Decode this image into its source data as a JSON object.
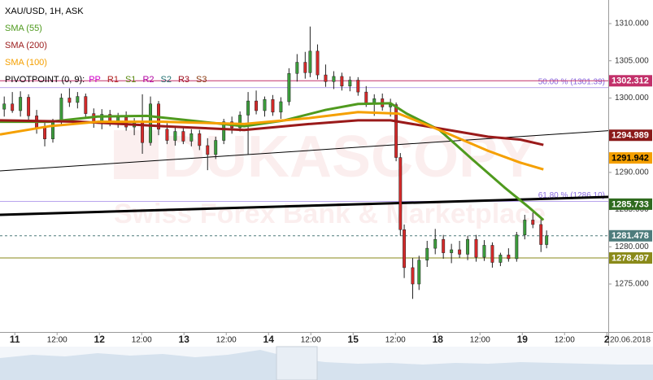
{
  "chart_data": {
    "type": "candlestick",
    "title": "XAU/USD, 1H, ASK",
    "pivot_label": "PIVOTPOINT (0, 9):",
    "pivot_levels": [
      {
        "name": "PP",
        "color": "#d000c8"
      },
      {
        "name": "R1",
        "color": "#b02020"
      },
      {
        "name": "S1",
        "color": "#5a8a10"
      },
      {
        "name": "R2",
        "color": "#b000a0"
      },
      {
        "name": "S2",
        "color": "#207070"
      },
      {
        "name": "R3",
        "color": "#a01020"
      },
      {
        "name": "S3",
        "color": "#8a3a10"
      }
    ],
    "watermark": [
      "DUKASCOPY",
      "Swiss Forex Bank & Marketplace"
    ],
    "date_label": "20.06.2018",
    "xlim": [
      -4.2,
      168.4
    ],
    "ylim": [
      1268.55,
      1313.17
    ],
    "xticks": [
      {
        "value": 0,
        "label": "11"
      },
      {
        "value": 12,
        "label": "12:00"
      },
      {
        "value": 24,
        "label": "12"
      },
      {
        "value": 36,
        "label": "12:00"
      },
      {
        "value": 48,
        "label": "13"
      },
      {
        "value": 60,
        "label": "12:00"
      },
      {
        "value": 72,
        "label": "14"
      },
      {
        "value": 84,
        "label": "12:00"
      },
      {
        "value": 96,
        "label": "15"
      },
      {
        "value": 108,
        "label": "12:00"
      },
      {
        "value": 120,
        "label": "18"
      },
      {
        "value": 132,
        "label": "12:00"
      },
      {
        "value": 144,
        "label": "19"
      },
      {
        "value": 156,
        "label": "12:00"
      },
      {
        "value": 168,
        "label": "2"
      }
    ],
    "yticks": [
      {
        "value": 1275,
        "label": "1275.000"
      },
      {
        "value": 1280,
        "label": "1280.000"
      },
      {
        "value": 1285,
        "label": "1285.000"
      },
      {
        "value": 1290,
        "label": "1290.000"
      },
      {
        "value": 1295,
        "label": "1295.000"
      },
      {
        "value": 1300,
        "label": "1300.000"
      },
      {
        "value": 1305,
        "label": "1305.000"
      },
      {
        "value": 1310,
        "label": "1310.000"
      }
    ],
    "candles": {
      "up_color": "#3c9c3c",
      "down_color": "#d42a2a",
      "x": [
        -3.0,
        -0.7,
        1.6,
        3.9,
        6.2,
        8.5,
        10.8,
        13.2,
        15.5,
        17.8,
        20.1,
        22.4,
        24.7,
        27.0,
        29.3,
        31.6,
        33.9,
        36.2,
        38.5,
        40.8,
        43.2,
        45.5,
        47.8,
        50.1,
        52.4,
        54.7,
        57.0,
        59.3,
        61.6,
        63.9,
        66.2,
        68.5,
        70.9,
        73.2,
        75.5,
        77.8,
        80.1,
        82.4,
        83.8,
        85.9,
        88.2,
        90.5,
        92.8,
        95.1,
        97.4,
        99.7,
        102.0,
        104.3,
        106.6,
        108.2,
        109.4,
        110.5,
        112.9,
        114.7,
        117.0,
        119.3,
        121.6,
        123.9,
        126.2,
        128.5,
        130.9,
        133.2,
        135.5,
        137.8,
        140.1,
        142.4,
        144.7,
        147.0,
        149.3,
        150.9
      ],
      "open": [
        1298.5,
        1299.2,
        1298.3,
        1300.1,
        1297.6,
        1296.0,
        1294.5,
        1296.8,
        1300.0,
        1299.4,
        1300.2,
        1297.9,
        1296.6,
        1297.8,
        1296.5,
        1297.4,
        1296.1,
        1296.9,
        1294.0,
        1299.2,
        1295.8,
        1294.3,
        1295.5,
        1294.2,
        1295.2,
        1293.6,
        1292.4,
        1294.3,
        1296.8,
        1296.0,
        1297.7,
        1299.6,
        1298.3,
        1299.8,
        1298.1,
        1299.5,
        1303.3,
        1304.8,
        1303.4,
        1306.3,
        1303.1,
        1302.2,
        1302.9,
        1301.6,
        1302.4,
        1300.8,
        1299.3,
        1299.9,
        1298.8,
        1299.1,
        1292.0,
        1282.3,
        1277.2,
        1275.0,
        1278.2,
        1279.8,
        1281.0,
        1279.2,
        1279.6,
        1279.0,
        1281.0,
        1278.6,
        1280.2,
        1277.9,
        1278.9,
        1278.4,
        1281.6,
        1283.6,
        1283.0,
        1280.3
      ],
      "high": [
        1300.2,
        1300.8,
        1300.9,
        1300.5,
        1298.4,
        1296.8,
        1297.2,
        1300.6,
        1301.3,
        1300.8,
        1300.6,
        1298.6,
        1298.5,
        1298.4,
        1298.0,
        1298.2,
        1297.3,
        1300.5,
        1300.2,
        1299.6,
        1296.6,
        1296.0,
        1296.1,
        1295.8,
        1295.7,
        1294.6,
        1294.8,
        1297.2,
        1297.5,
        1298.2,
        1300.8,
        1301.0,
        1300.2,
        1300.4,
        1300.1,
        1304.0,
        1305.9,
        1306.2,
        1309.6,
        1307.2,
        1304.5,
        1303.6,
        1303.4,
        1302.9,
        1302.8,
        1301.6,
        1300.5,
        1300.6,
        1299.9,
        1299.4,
        1292.6,
        1283.0,
        1278.5,
        1278.8,
        1280.8,
        1282.4,
        1281.6,
        1280.4,
        1280.8,
        1281.5,
        1281.6,
        1280.9,
        1280.6,
        1279.2,
        1279.8,
        1282.0,
        1284.3,
        1284.6,
        1283.8,
        1282.2
      ],
      "low": [
        1297.5,
        1298.0,
        1297.5,
        1297.0,
        1295.2,
        1293.5,
        1294.0,
        1296.3,
        1298.8,
        1298.6,
        1297.4,
        1296.0,
        1295.8,
        1296.2,
        1296.0,
        1295.6,
        1295.0,
        1292.5,
        1293.6,
        1295.0,
        1293.8,
        1293.6,
        1293.8,
        1293.5,
        1293.0,
        1290.3,
        1291.8,
        1293.8,
        1295.2,
        1295.5,
        1292.4,
        1297.8,
        1297.5,
        1297.6,
        1297.2,
        1299.0,
        1302.2,
        1302.6,
        1302.8,
        1302.5,
        1301.5,
        1301.2,
        1301.0,
        1300.9,
        1300.3,
        1298.8,
        1297.6,
        1298.3,
        1297.5,
        1291.5,
        1281.5,
        1275.8,
        1273.0,
        1274.2,
        1277.3,
        1279.0,
        1278.4,
        1277.8,
        1278.5,
        1278.2,
        1278.0,
        1278.1,
        1277.2,
        1277.4,
        1278.0,
        1278.0,
        1281.0,
        1282.5,
        1279.3,
        1279.8
      ],
      "close": [
        1299.2,
        1298.3,
        1300.1,
        1297.6,
        1296.0,
        1294.5,
        1296.8,
        1300.0,
        1299.4,
        1300.2,
        1297.9,
        1296.6,
        1297.8,
        1296.5,
        1297.4,
        1296.1,
        1296.9,
        1294.0,
        1299.2,
        1295.8,
        1294.3,
        1295.5,
        1294.2,
        1295.2,
        1293.6,
        1292.4,
        1294.3,
        1296.8,
        1296.0,
        1297.7,
        1299.6,
        1298.3,
        1299.8,
        1298.1,
        1299.5,
        1303.3,
        1304.8,
        1303.4,
        1306.3,
        1303.1,
        1302.2,
        1302.9,
        1301.6,
        1302.4,
        1300.8,
        1299.3,
        1299.9,
        1298.8,
        1299.1,
        1292.0,
        1282.3,
        1277.2,
        1275.0,
        1278.2,
        1279.8,
        1281.0,
        1279.2,
        1279.6,
        1279.0,
        1281.0,
        1278.6,
        1280.2,
        1277.9,
        1278.9,
        1278.4,
        1281.6,
        1283.6,
        1283.0,
        1280.3,
        1281.5
      ]
    },
    "series": [
      {
        "name": "SMA (55)",
        "color": "#4f9a1e",
        "x": [
          -4.2,
          9.7,
          23.5,
          37.4,
          51.2,
          65.1,
          76.6,
          88.2,
          97.4,
          106.6,
          111.2,
          120.5,
          129.7,
          138.9,
          145.9,
          150.0
        ],
        "values": [
          1296.8,
          1296.8,
          1297.5,
          1297.6,
          1296.9,
          1296.2,
          1297.0,
          1298.4,
          1299.2,
          1299.3,
          1297.9,
          1295.7,
          1291.8,
          1288.0,
          1285.3,
          1283.6
        ]
      },
      {
        "name": "SMA (200)",
        "color": "#9a1a1a",
        "x": [
          -4.2,
          18.9,
          42.0,
          65.1,
          83.5,
          97.4,
          106.6,
          120.5,
          134.3,
          143.5,
          150.0
        ],
        "values": [
          1297.0,
          1296.8,
          1296.2,
          1295.7,
          1296.5,
          1297.0,
          1297.0,
          1295.9,
          1294.8,
          1294.4,
          1293.7
        ]
      },
      {
        "name": "SMA (100)",
        "color": "#f5a000",
        "x": [
          -4.2,
          9.7,
          23.5,
          42.0,
          65.1,
          83.5,
          97.4,
          108.9,
          120.5,
          134.3,
          143.5,
          150.0
        ],
        "values": [
          1295.1,
          1296.2,
          1296.8,
          1296.8,
          1296.5,
          1297.3,
          1298.1,
          1297.9,
          1295.7,
          1292.9,
          1291.3,
          1290.4
        ]
      }
    ],
    "trendlines": [
      {
        "x": [
          -4.2,
          168.4
        ],
        "values": [
          1290.2,
          1295.6
        ],
        "color": "#000000",
        "width": 1
      },
      {
        "x": [
          -4.2,
          168.4
        ],
        "values": [
          1284.3,
          1286.7
        ],
        "color": "#000000",
        "width": 3
      }
    ],
    "fib_levels": [
      {
        "value": 1301.39,
        "label": "50.00 % (1301.39)",
        "color": "#8a6ae0"
      },
      {
        "value": 1286.1,
        "label": "61.80 % (1286.10)",
        "color": "#8a6ae0"
      }
    ],
    "price_markers": [
      {
        "value": 1302.312,
        "color": "#c2306a",
        "text_color": "#ffffff",
        "line": "solid"
      },
      {
        "value": 1294.989,
        "color": "#8a1a1a",
        "text_color": "#ffffff",
        "line": "none"
      },
      {
        "value": 1291.942,
        "color": "#f5a000",
        "text_color": "#000000",
        "line": "none"
      },
      {
        "value": 1285.733,
        "color": "#2e6a1e",
        "text_color": "#ffffff",
        "line": "none"
      },
      {
        "value": 1281.478,
        "color": "#4e7c7c",
        "text_color": "#ffffff",
        "line": "dashed"
      },
      {
        "value": 1278.497,
        "color": "#8a8a1a",
        "text_color": "#ffffff",
        "line": "solid"
      }
    ]
  }
}
